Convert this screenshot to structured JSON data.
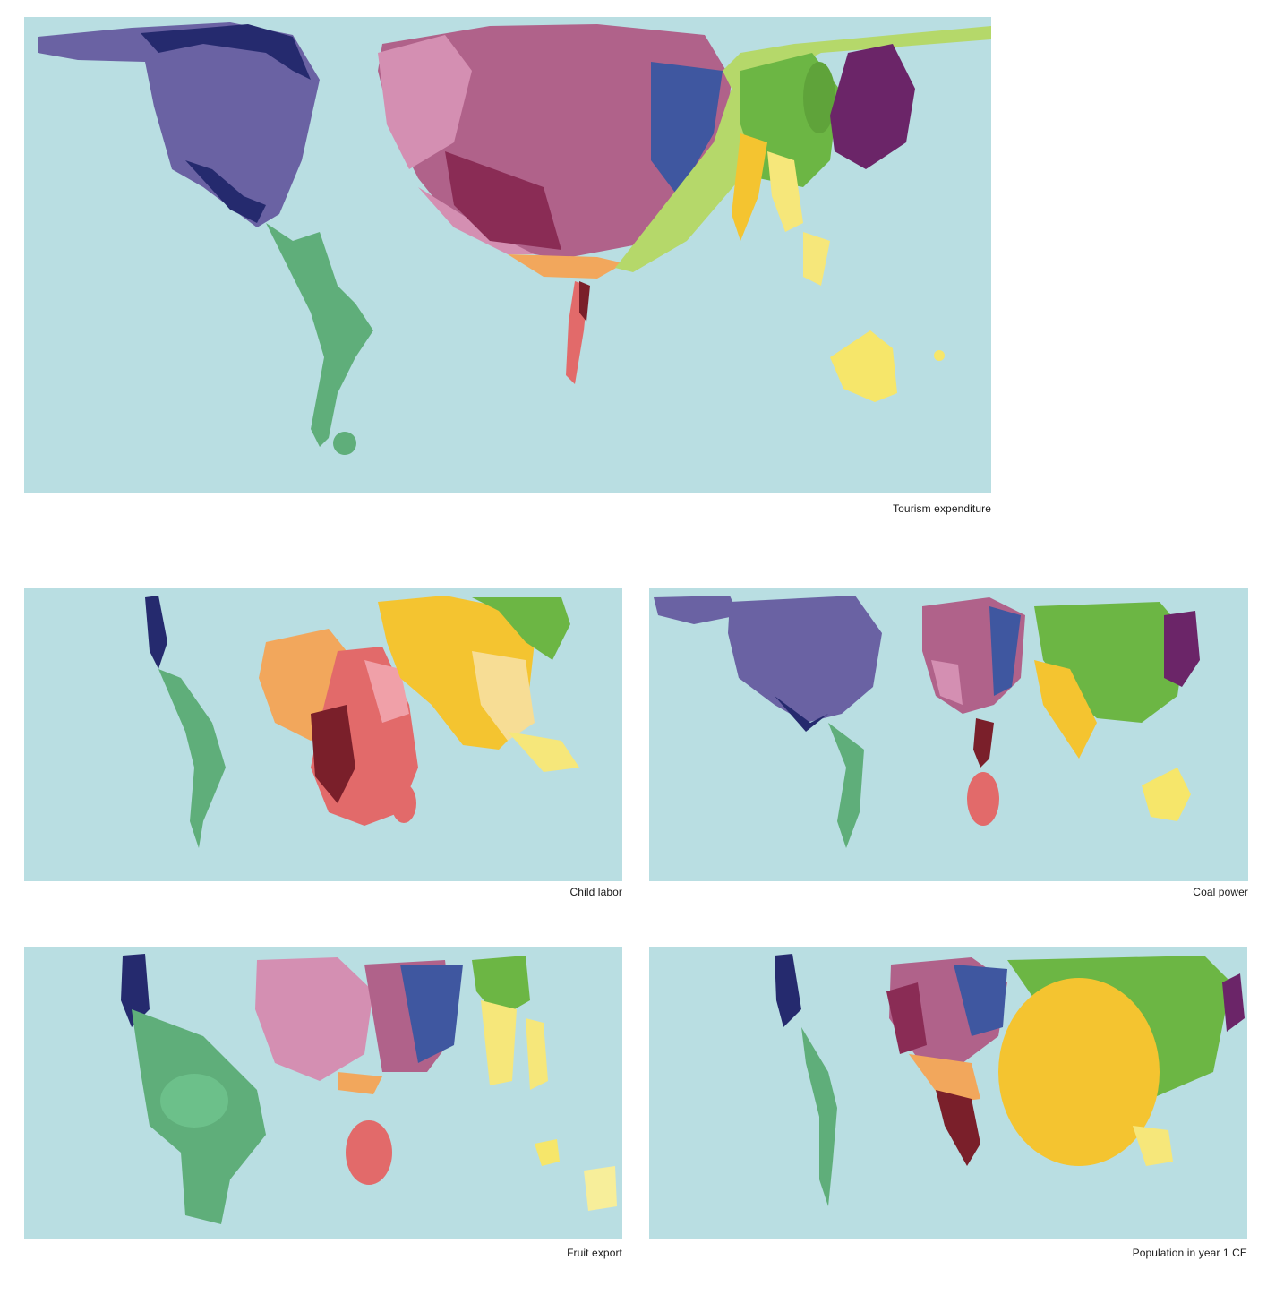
{
  "colors": {
    "ocean": "#b9dee2",
    "north_america": "#6a62a3",
    "north_america_dark": "#252a6e",
    "latin_america": "#5fae7a",
    "europe": "#b0628a",
    "europe_light": "#d48fb2",
    "europe_blue": "#3f57a0",
    "middle_east": "#f2a75c",
    "africa": "#e26a6a",
    "africa_dark": "#7a1f2a",
    "south_asia": "#f4c430",
    "east_asia": "#6cb644",
    "japan_korea": "#6b2568",
    "southeast_asia": "#f6e77a",
    "oceania": "#f6e66a"
  },
  "maps": [
    {
      "caption": "Tourism expenditure"
    },
    {
      "caption": "Child labor"
    },
    {
      "caption": "Coal power"
    },
    {
      "caption": "Fruit export"
    },
    {
      "caption": "Population in year 1 CE"
    }
  ]
}
